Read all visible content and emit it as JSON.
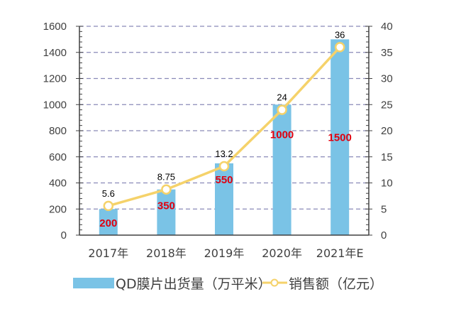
{
  "chart_data": {
    "type": "bar",
    "title": "",
    "xlabel": "",
    "ylabel": "",
    "categories": [
      "2017年",
      "2018年",
      "2019年",
      "2020年",
      "2021年E"
    ],
    "series": [
      {
        "name": "QD膜片出货量（万平米）",
        "type": "bar",
        "axis": "left",
        "values": [
          200,
          350,
          550,
          1000,
          1500
        ],
        "color": "#7ac3e6",
        "label_color": "#e0000f"
      },
      {
        "name": "销售额（亿元）",
        "type": "line",
        "axis": "right",
        "values": [
          5.6,
          8.75,
          13.2,
          24,
          36
        ],
        "value_labels": [
          "5.6",
          "8.75",
          "13.2",
          "24",
          "36"
        ],
        "color": "#f5d26a",
        "marker": "hollow-circle"
      }
    ],
    "ylim": [
      0,
      1600
    ],
    "y_ticks": [
      0,
      200,
      400,
      600,
      800,
      1000,
      1200,
      1400,
      1600
    ],
    "y2lim": [
      0,
      40
    ],
    "y2_ticks": [
      0,
      5,
      10,
      15,
      20,
      25,
      30,
      35,
      40
    ],
    "grid": "horizontal-dashed",
    "grid_color": "#8a8ab8",
    "legend": "bottom"
  }
}
